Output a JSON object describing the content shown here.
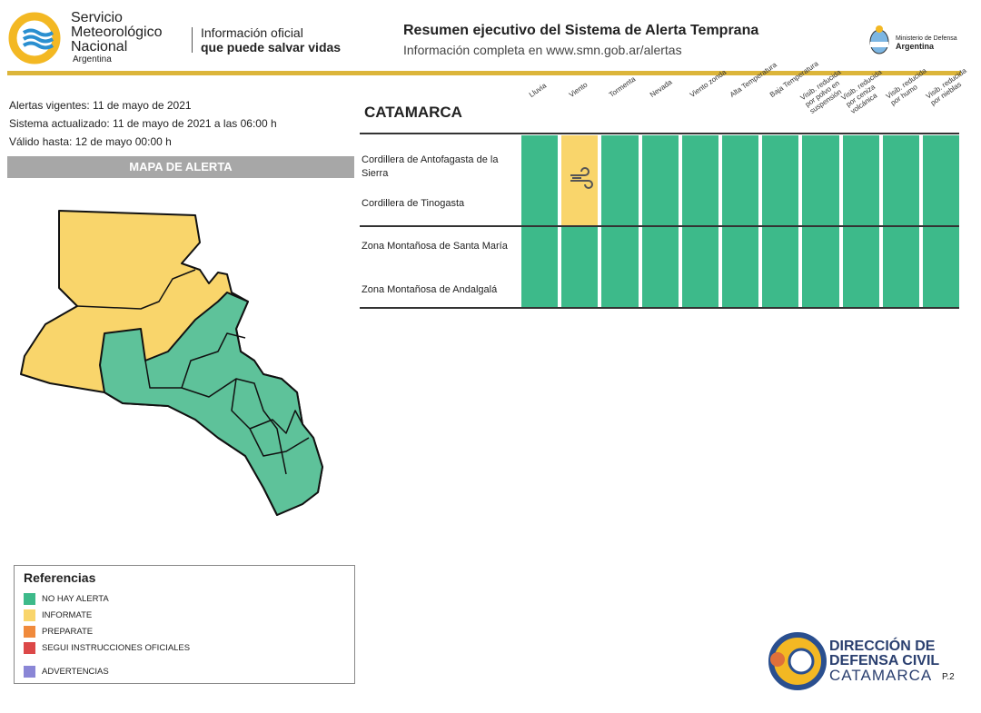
{
  "header": {
    "org_lines": [
      "Servicio",
      "Meteorológico",
      "Nacional"
    ],
    "org_country": "Argentina",
    "tagline_1": "Información oficial",
    "tagline_2": "que puede salvar vidas",
    "title": "Resumen ejecutivo del Sistema de Alerta Temprana",
    "subtitle": "Información completa en www.smn.gob.ar/alertas",
    "ministry": "Ministerio de Defensa",
    "ministry_country": "Argentina"
  },
  "info": {
    "lines": [
      "Alertas vigentes: 11 de mayo de 2021",
      "Sistema actualizado: 11 de mayo de 2021 a las 06:00 h",
      "Válido hasta: 12 de mayo 00:00 h"
    ],
    "map_title": "MAPA DE ALERTA"
  },
  "table": {
    "region": "CATAMARCA",
    "columns": [
      "Lluvia",
      "Viento",
      "Tormenta",
      "Nevada",
      "Viento zonda",
      "Alta Temperatura",
      "Baja Temperatura",
      "Visib. reducida por polvo en suspensión",
      "Visib. reducida por ceniza volcánica",
      "Visib. reducida por humo",
      "Visib. reducida por nieblas"
    ],
    "groups": [
      {
        "zones": [
          "Cordillera de Antofagasta de la Sierra",
          "Cordillera de Tinogasta"
        ],
        "colors": [
          "#3dba8a",
          "#f9d56b",
          "#3dba8a",
          "#3dba8a",
          "#3dba8a",
          "#3dba8a",
          "#3dba8a",
          "#3dba8a",
          "#3dba8a",
          "#3dba8a",
          "#3dba8a"
        ]
      },
      {
        "zones": [
          "Zona Montañosa de Santa María",
          "Zona Montañosa de Andalgalá"
        ],
        "colors": [
          "#3dba8a",
          "#3dba8a",
          "#3dba8a",
          "#3dba8a",
          "#3dba8a",
          "#3dba8a",
          "#3dba8a",
          "#3dba8a",
          "#3dba8a",
          "#3dba8a",
          "#3dba8a"
        ]
      }
    ]
  },
  "legend": {
    "title": "Referencias",
    "items": [
      {
        "label": "NO HAY ALERTA",
        "color": "#3dba8a"
      },
      {
        "label": "INFORMATE",
        "color": "#f9d56b"
      },
      {
        "label": "PREPARATE",
        "color": "#f08a3c"
      },
      {
        "label": "SEGUI INSTRUCCIONES OFICIALES",
        "color": "#dc4848"
      },
      {
        "label": "ADVERTENCIAS",
        "color": "#8a86d6"
      }
    ]
  },
  "footer": {
    "lines": [
      "DIRECCIÓN DE",
      "DEFENSA CIVIL",
      "CATAMARCA"
    ],
    "page": "P.2"
  }
}
